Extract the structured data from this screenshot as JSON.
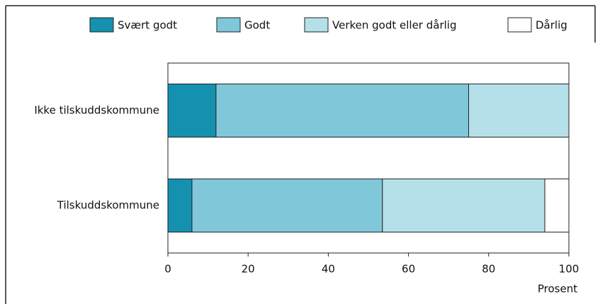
{
  "chart_data": {
    "type": "stacked-barh",
    "categories": [
      "Ikke tilskuddskommune",
      "Tilskuddskommune"
    ],
    "series": [
      {
        "name": "Svært godt",
        "color": "#1591b0",
        "values": [
          12,
          6
        ]
      },
      {
        "name": "Godt",
        "color": "#80c8d9",
        "values": [
          63,
          47.5
        ]
      },
      {
        "name": "Verken godt eller dårlig",
        "color": "#b5e0ea",
        "values": [
          25,
          40.5
        ]
      },
      {
        "name": "Dårlig",
        "color": "#ffffff",
        "values": [
          0,
          6
        ]
      }
    ],
    "xlabel": "Prosent",
    "xlim": [
      0,
      100
    ],
    "xticks": [
      0,
      20,
      40,
      60,
      80,
      100
    ],
    "grid": false,
    "legend": "top"
  }
}
